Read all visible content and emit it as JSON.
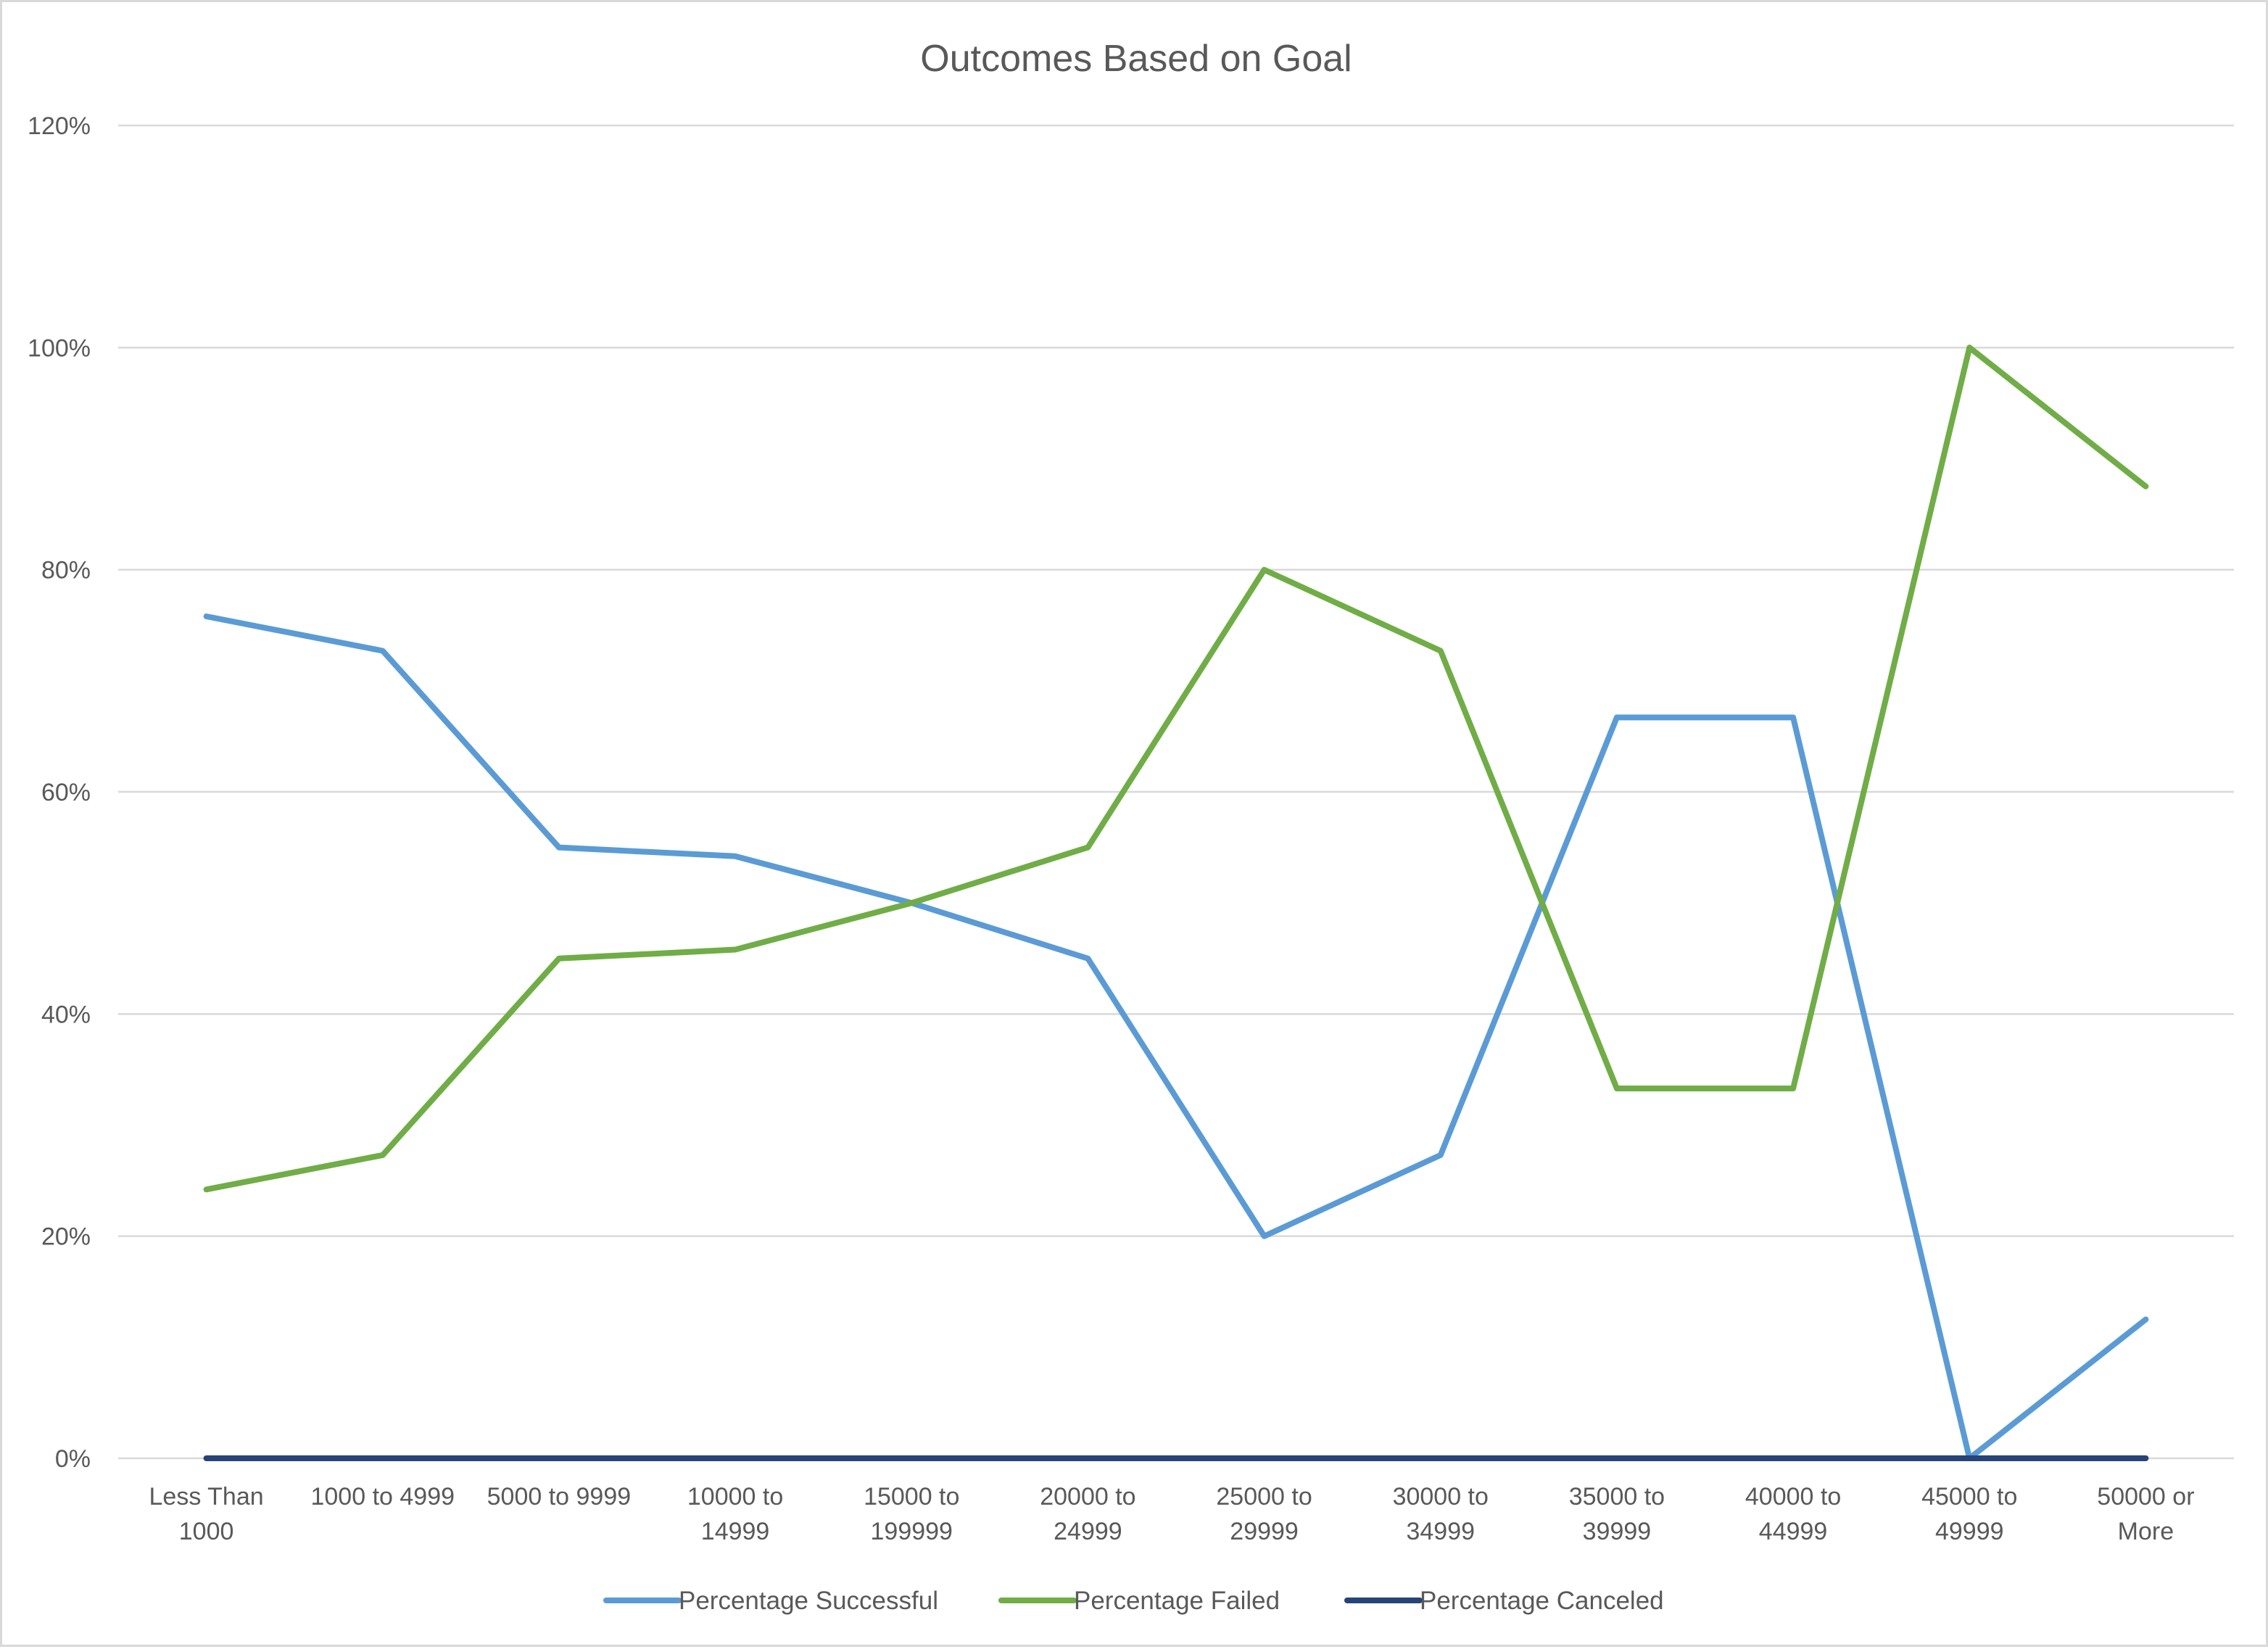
{
  "chart_data": {
    "type": "line",
    "title": "Outcomes Based on Goal",
    "xlabel": "",
    "ylabel": "",
    "ylim": [
      0,
      1.2
    ],
    "y_ticks": [
      "0%",
      "20%",
      "40%",
      "60%",
      "80%",
      "100%",
      "120%"
    ],
    "y_tick_values": [
      0,
      0.2,
      0.4,
      0.6,
      0.8,
      1.0,
      1.2
    ],
    "grid": true,
    "legend": "bottom",
    "categories": [
      [
        "Less Than",
        "1000"
      ],
      [
        "1000 to 4999"
      ],
      [
        "5000 to 9999"
      ],
      [
        "10000 to",
        "14999"
      ],
      [
        "15000 to",
        "199999"
      ],
      [
        "20000 to",
        "24999"
      ],
      [
        "25000 to",
        "29999"
      ],
      [
        "30000 to",
        "34999"
      ],
      [
        "35000 to",
        "39999"
      ],
      [
        "40000 to",
        "44999"
      ],
      [
        "45000 to",
        "49999"
      ],
      [
        "50000 or",
        "More"
      ]
    ],
    "series": [
      {
        "name": "Percentage Successful",
        "color": "#5b9bd5",
        "values": [
          0.758,
          0.727,
          0.55,
          0.542,
          0.5,
          0.45,
          0.2,
          0.273,
          0.667,
          0.667,
          0.0,
          0.125
        ]
      },
      {
        "name": "Percentage Failed",
        "color": "#70ad47",
        "values": [
          0.242,
          0.273,
          0.45,
          0.458,
          0.5,
          0.55,
          0.8,
          0.727,
          0.333,
          0.333,
          1.0,
          0.875
        ]
      },
      {
        "name": "Percentage Canceled",
        "color": "#264478",
        "values": [
          0,
          0,
          0,
          0,
          0,
          0,
          0,
          0,
          0,
          0,
          0,
          0
        ]
      }
    ]
  }
}
